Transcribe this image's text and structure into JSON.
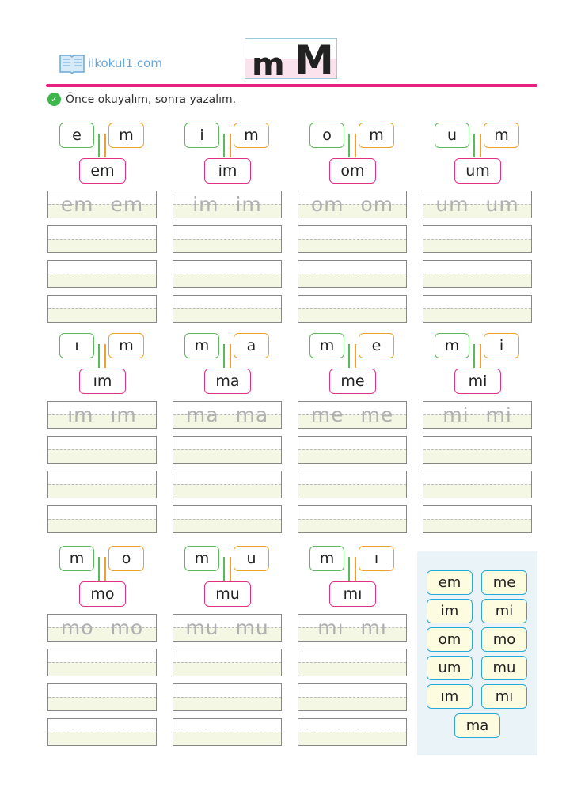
{
  "header": {
    "logo_text": "ilkokul1.com",
    "letter_lower": "m",
    "letter_upper": "M"
  },
  "instruction": "Önce okuyalım, sonra yazalım.",
  "units": [
    {
      "a": "e",
      "b": "m",
      "r": "em",
      "trace": "em em"
    },
    {
      "a": "i",
      "b": "m",
      "r": "im",
      "trace": "im im"
    },
    {
      "a": "o",
      "b": "m",
      "r": "om",
      "trace": "om om"
    },
    {
      "a": "u",
      "b": "m",
      "r": "um",
      "trace": "um um"
    },
    {
      "a": "ı",
      "b": "m",
      "r": "ım",
      "trace": "ım ım"
    },
    {
      "a": "m",
      "b": "a",
      "r": "ma",
      "trace": "ma ma"
    },
    {
      "a": "m",
      "b": "e",
      "r": "me",
      "trace": "me me"
    },
    {
      "a": "m",
      "b": "i",
      "r": "mi",
      "trace": "mi mi"
    },
    {
      "a": "m",
      "b": "o",
      "r": "mo",
      "trace": "mo mo"
    },
    {
      "a": "m",
      "b": "u",
      "r": "mu",
      "trace": "mu mu"
    },
    {
      "a": "m",
      "b": "ı",
      "r": "mı",
      "trace": "mı mı"
    }
  ],
  "panel": [
    "em",
    "me",
    "im",
    "mi",
    "om",
    "mo",
    "um",
    "mu",
    "ım",
    "mı",
    "ma"
  ],
  "colors": {
    "accent": "#e6217f",
    "green": "#5cb85c",
    "orange": "#f0a030",
    "cyan": "#2aa8d8"
  }
}
